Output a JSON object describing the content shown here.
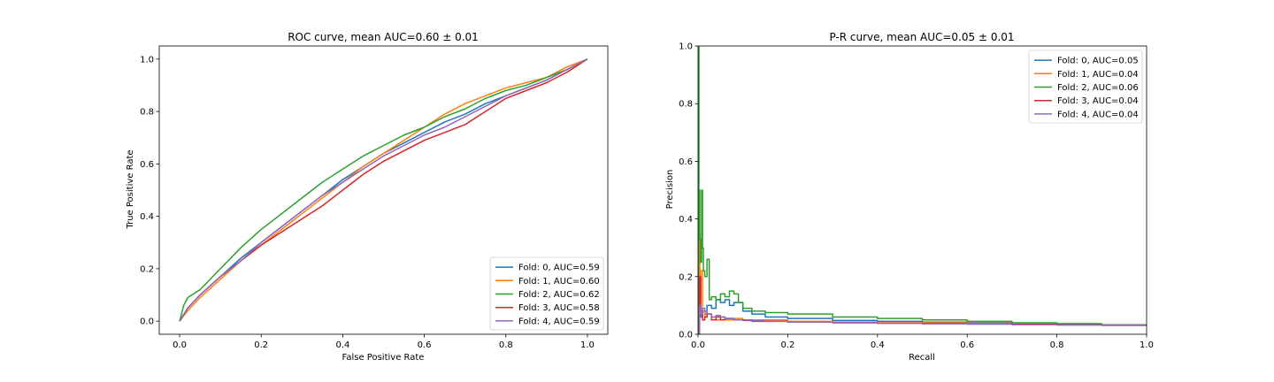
{
  "colors": [
    "#1f77b4",
    "#ff7f0e",
    "#2ca02c",
    "#d62728",
    "#9467bd"
  ],
  "chart_data": [
    {
      "type": "line",
      "title": "ROC curve, mean AUC=0.60 ± 0.01",
      "xlabel": "False Positive Rate",
      "ylabel": "True Positive Rate",
      "xlim": [
        -0.05,
        1.05
      ],
      "ylim": [
        -0.05,
        1.05
      ],
      "xticks": [
        0.0,
        0.2,
        0.4,
        0.6,
        0.8,
        1.0
      ],
      "xtick_labels": [
        "0.0",
        "0.2",
        "0.4",
        "0.6",
        "0.8",
        "1.0"
      ],
      "yticks": [
        0.0,
        0.2,
        0.4,
        0.6,
        0.8,
        1.0
      ],
      "ytick_labels": [
        "0.0",
        "0.2",
        "0.4",
        "0.6",
        "0.8",
        "1.0"
      ],
      "grid": false,
      "legend_position": "lower-right",
      "series": [
        {
          "name": "Fold: 0, AUC=0.59",
          "x": [
            0.0,
            0.02,
            0.05,
            0.1,
            0.15,
            0.2,
            0.25,
            0.3,
            0.35,
            0.4,
            0.45,
            0.5,
            0.55,
            0.6,
            0.65,
            0.7,
            0.75,
            0.8,
            0.85,
            0.9,
            0.95,
            1.0
          ],
          "y": [
            0.0,
            0.05,
            0.1,
            0.17,
            0.24,
            0.3,
            0.36,
            0.42,
            0.48,
            0.54,
            0.59,
            0.64,
            0.68,
            0.72,
            0.76,
            0.79,
            0.83,
            0.86,
            0.89,
            0.92,
            0.96,
            1.0
          ]
        },
        {
          "name": "Fold: 1, AUC=0.60",
          "x": [
            0.0,
            0.02,
            0.05,
            0.1,
            0.15,
            0.2,
            0.25,
            0.3,
            0.35,
            0.4,
            0.45,
            0.5,
            0.55,
            0.6,
            0.65,
            0.7,
            0.75,
            0.8,
            0.85,
            0.9,
            0.95,
            1.0
          ],
          "y": [
            0.0,
            0.04,
            0.09,
            0.16,
            0.23,
            0.29,
            0.35,
            0.41,
            0.47,
            0.53,
            0.59,
            0.64,
            0.69,
            0.74,
            0.79,
            0.83,
            0.86,
            0.89,
            0.91,
            0.93,
            0.97,
            1.0
          ]
        },
        {
          "name": "Fold: 2, AUC=0.62",
          "x": [
            0.0,
            0.01,
            0.02,
            0.05,
            0.1,
            0.15,
            0.2,
            0.25,
            0.3,
            0.35,
            0.4,
            0.45,
            0.5,
            0.55,
            0.6,
            0.65,
            0.7,
            0.75,
            0.8,
            0.85,
            0.9,
            0.95,
            1.0
          ],
          "y": [
            0.0,
            0.06,
            0.09,
            0.12,
            0.2,
            0.28,
            0.35,
            0.41,
            0.47,
            0.53,
            0.58,
            0.63,
            0.67,
            0.71,
            0.74,
            0.78,
            0.81,
            0.85,
            0.88,
            0.9,
            0.93,
            0.96,
            1.0
          ]
        },
        {
          "name": "Fold: 3, AUC=0.58",
          "x": [
            0.0,
            0.02,
            0.05,
            0.1,
            0.15,
            0.2,
            0.25,
            0.3,
            0.35,
            0.4,
            0.45,
            0.5,
            0.55,
            0.6,
            0.65,
            0.7,
            0.75,
            0.8,
            0.85,
            0.9,
            0.95,
            1.0
          ],
          "y": [
            0.0,
            0.05,
            0.1,
            0.17,
            0.23,
            0.29,
            0.34,
            0.39,
            0.44,
            0.5,
            0.56,
            0.61,
            0.65,
            0.69,
            0.72,
            0.75,
            0.8,
            0.85,
            0.88,
            0.91,
            0.95,
            1.0
          ]
        },
        {
          "name": "Fold: 4, AUC=0.59",
          "x": [
            0.0,
            0.02,
            0.05,
            0.1,
            0.15,
            0.2,
            0.25,
            0.3,
            0.35,
            0.4,
            0.45,
            0.5,
            0.55,
            0.6,
            0.65,
            0.7,
            0.75,
            0.8,
            0.85,
            0.9,
            0.95,
            1.0
          ],
          "y": [
            0.0,
            0.05,
            0.1,
            0.17,
            0.23,
            0.3,
            0.36,
            0.42,
            0.48,
            0.53,
            0.58,
            0.63,
            0.67,
            0.71,
            0.74,
            0.78,
            0.82,
            0.86,
            0.89,
            0.92,
            0.96,
            1.0
          ]
        }
      ]
    },
    {
      "type": "line",
      "title": "P-R curve, mean AUC=0.05 ± 0.01",
      "xlabel": "Recall",
      "ylabel": "Precision",
      "xlim": [
        0.0,
        1.0
      ],
      "ylim": [
        0.0,
        1.0
      ],
      "xticks": [
        0.0,
        0.2,
        0.4,
        0.6,
        0.8,
        1.0
      ],
      "xtick_labels": [
        "0.0",
        "0.2",
        "0.4",
        "0.6",
        "0.8",
        "1.0"
      ],
      "yticks": [
        0.0,
        0.2,
        0.4,
        0.6,
        0.8,
        1.0
      ],
      "ytick_labels": [
        "0.0",
        "0.2",
        "0.4",
        "0.6",
        "0.8",
        "1.0"
      ],
      "grid": false,
      "legend_position": "upper-right",
      "series": [
        {
          "name": "Fold: 0, AUC=0.05",
          "x": [
            0.0,
            0.003,
            0.006,
            0.01,
            0.015,
            0.02,
            0.03,
            0.04,
            0.05,
            0.06,
            0.07,
            0.08,
            0.1,
            0.12,
            0.15,
            0.2,
            0.3,
            0.4,
            0.5,
            0.6,
            0.7,
            0.8,
            0.9,
            1.0
          ],
          "y": [
            0.0,
            0.1,
            0.06,
            0.08,
            0.07,
            0.1,
            0.09,
            0.12,
            0.11,
            0.12,
            0.1,
            0.11,
            0.08,
            0.07,
            0.06,
            0.055,
            0.048,
            0.045,
            0.042,
            0.04,
            0.038,
            0.035,
            0.032,
            0.03
          ]
        },
        {
          "name": "Fold: 1, AUC=0.04",
          "x": [
            0.0,
            0.002,
            0.004,
            0.006,
            0.01,
            0.015,
            0.02,
            0.03,
            0.04,
            0.05,
            0.06,
            0.08,
            0.1,
            0.12,
            0.15,
            0.2,
            0.3,
            0.4,
            0.5,
            0.6,
            0.7,
            0.8,
            0.9,
            1.0
          ],
          "y": [
            0.0,
            0.35,
            0.12,
            0.22,
            0.08,
            0.06,
            0.07,
            0.06,
            0.05,
            0.06,
            0.05,
            0.055,
            0.05,
            0.05,
            0.05,
            0.045,
            0.042,
            0.04,
            0.04,
            0.038,
            0.036,
            0.034,
            0.031,
            0.03
          ]
        },
        {
          "name": "Fold: 2, AUC=0.06",
          "x": [
            0.0,
            0.001,
            0.002,
            0.004,
            0.006,
            0.008,
            0.01,
            0.012,
            0.015,
            0.02,
            0.025,
            0.03,
            0.04,
            0.05,
            0.06,
            0.07,
            0.08,
            0.09,
            0.1,
            0.12,
            0.15,
            0.2,
            0.3,
            0.4,
            0.5,
            0.6,
            0.7,
            0.8,
            0.9,
            1.0
          ],
          "y": [
            0.0,
            1.0,
            0.5,
            0.33,
            0.25,
            0.5,
            0.3,
            0.22,
            0.2,
            0.26,
            0.12,
            0.13,
            0.12,
            0.14,
            0.13,
            0.15,
            0.14,
            0.11,
            0.09,
            0.08,
            0.075,
            0.07,
            0.06,
            0.055,
            0.05,
            0.045,
            0.04,
            0.037,
            0.033,
            0.03
          ]
        },
        {
          "name": "Fold: 3, AUC=0.04",
          "x": [
            0.0,
            0.003,
            0.006,
            0.01,
            0.015,
            0.02,
            0.03,
            0.04,
            0.05,
            0.06,
            0.08,
            0.1,
            0.12,
            0.15,
            0.2,
            0.3,
            0.4,
            0.5,
            0.6,
            0.7,
            0.8,
            0.9,
            1.0
          ],
          "y": [
            0.0,
            0.2,
            0.08,
            0.05,
            0.06,
            0.07,
            0.05,
            0.06,
            0.05,
            0.055,
            0.05,
            0.048,
            0.045,
            0.045,
            0.042,
            0.04,
            0.038,
            0.037,
            0.036,
            0.034,
            0.033,
            0.031,
            0.03
          ]
        },
        {
          "name": "Fold: 4, AUC=0.04",
          "x": [
            0.0,
            0.003,
            0.006,
            0.01,
            0.015,
            0.02,
            0.03,
            0.04,
            0.05,
            0.06,
            0.08,
            0.1,
            0.12,
            0.15,
            0.2,
            0.3,
            0.4,
            0.5,
            0.6,
            0.7,
            0.8,
            0.9,
            1.0
          ],
          "y": [
            0.0,
            0.1,
            0.07,
            0.09,
            0.08,
            0.07,
            0.06,
            0.065,
            0.06,
            0.055,
            0.05,
            0.05,
            0.047,
            0.045,
            0.042,
            0.04,
            0.038,
            0.036,
            0.035,
            0.033,
            0.032,
            0.031,
            0.03
          ]
        }
      ]
    }
  ]
}
